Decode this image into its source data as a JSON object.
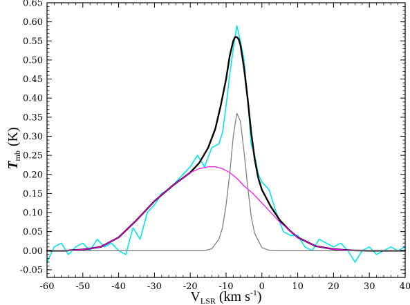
{
  "chart_data": {
    "type": "line",
    "title": "",
    "xlabel": {
      "main": "V",
      "sub": "LSR",
      "unit_pre": "(km s",
      "unit_sup": "-1",
      "unit_post": ")"
    },
    "ylabel": {
      "main": "T",
      "sub": "mb",
      "unit": "(K)"
    },
    "xlim": [
      -60,
      40
    ],
    "ylim": [
      -0.07,
      0.65
    ],
    "x_ticks": [
      -60,
      -50,
      -40,
      -30,
      -20,
      -10,
      0,
      10,
      20,
      30,
      40
    ],
    "x_tick_labels": [
      "-60",
      "-50",
      "-40",
      "-30",
      "-20",
      "-10",
      "0",
      "10",
      "20",
      "30",
      "40"
    ],
    "y_ticks": [
      -0.05,
      0.0,
      0.05,
      0.1,
      0.15,
      0.2,
      0.25,
      0.3,
      0.35,
      0.4,
      0.45,
      0.5,
      0.55,
      0.6,
      0.65
    ],
    "y_tick_labels": [
      "-0.05",
      "0.00",
      "0.05",
      "0.10",
      "0.15",
      "0.20",
      "0.25",
      "0.30",
      "0.35",
      "0.40",
      "0.45",
      "0.50",
      "0.55",
      "0.60",
      "0.65"
    ],
    "grid": false,
    "legend": "none",
    "series": [
      {
        "role": "observed spectrum",
        "color": "#00e5ee",
        "x": [
          -60,
          -58,
          -56,
          -54,
          -52,
          -50,
          -48,
          -46,
          -44,
          -42,
          -40,
          -38,
          -36,
          -34,
          -32,
          -30,
          -28,
          -26,
          -24,
          -22,
          -20,
          -18,
          -16,
          -14,
          -12,
          -11,
          -10,
          -9,
          -8,
          -7,
          -6,
          -5,
          -4,
          -3,
          -2,
          -1,
          0,
          2,
          4,
          6,
          8,
          10,
          12,
          14,
          16,
          18,
          20,
          22,
          24,
          26,
          28,
          30,
          32,
          34,
          36,
          38,
          40
        ],
        "values": [
          -0.03,
          0.01,
          0.02,
          -0.01,
          0.01,
          0.02,
          0.0,
          0.03,
          0.01,
          0.02,
          0.0,
          -0.01,
          0.06,
          0.03,
          0.1,
          0.12,
          0.15,
          0.16,
          0.18,
          0.2,
          0.22,
          0.25,
          0.22,
          0.27,
          0.28,
          0.31,
          0.38,
          0.46,
          0.53,
          0.59,
          0.55,
          0.5,
          0.4,
          0.28,
          0.25,
          0.2,
          0.18,
          0.16,
          0.1,
          0.05,
          0.04,
          0.04,
          0.01,
          0.0,
          0.03,
          0.02,
          0.01,
          0.02,
          0.0,
          -0.03,
          0.0,
          0.01,
          -0.01,
          0.0,
          0.01,
          0.0,
          0.01
        ]
      },
      {
        "role": "total fit",
        "color": "#000000",
        "x": [
          -60,
          -55,
          -50,
          -45,
          -40,
          -35,
          -30,
          -25,
          -20,
          -17.5,
          -15,
          -13,
          -11.5,
          -10,
          -9,
          -8,
          -7.5,
          -7,
          -6.5,
          -6,
          -5,
          -4,
          -3,
          -2,
          -1,
          0,
          2.5,
          5,
          7.5,
          10,
          15,
          20,
          25,
          30,
          35,
          40
        ],
        "values": [
          0.0,
          0.0,
          0.003,
          0.01,
          0.035,
          0.08,
          0.13,
          0.17,
          0.205,
          0.23,
          0.27,
          0.32,
          0.38,
          0.45,
          0.51,
          0.55,
          0.56,
          0.56,
          0.555,
          0.54,
          0.48,
          0.4,
          0.31,
          0.24,
          0.19,
          0.16,
          0.115,
          0.08,
          0.055,
          0.035,
          0.012,
          0.004,
          0.001,
          0.0,
          0.0,
          0.0
        ]
      },
      {
        "role": "broad gaussian component",
        "color": "#ff00ff",
        "x": [
          -60,
          -55,
          -50,
          -45,
          -40,
          -35,
          -30,
          -25,
          -20,
          -17.5,
          -15,
          -13,
          -11,
          -9,
          -7,
          -5,
          -2.5,
          0,
          2.5,
          5,
          7.5,
          10,
          15,
          20,
          25,
          30,
          35,
          40
        ],
        "values": [
          0.0,
          0.0,
          0.003,
          0.01,
          0.035,
          0.08,
          0.13,
          0.17,
          0.205,
          0.215,
          0.22,
          0.22,
          0.215,
          0.205,
          0.19,
          0.17,
          0.15,
          0.125,
          0.1,
          0.075,
          0.055,
          0.035,
          0.012,
          0.004,
          0.001,
          0.0,
          0.0,
          0.0
        ]
      },
      {
        "role": "narrow gaussian component",
        "color": "#808080",
        "x": [
          -60,
          -20,
          -16,
          -14,
          -12,
          -11,
          -10,
          -9,
          -8,
          -7,
          -6,
          -5,
          -4,
          -3,
          -2,
          0,
          2,
          4,
          40
        ],
        "values": [
          0.0,
          0.0,
          0.0,
          0.005,
          0.03,
          0.06,
          0.12,
          0.2,
          0.3,
          0.36,
          0.34,
          0.26,
          0.17,
          0.09,
          0.045,
          0.008,
          0.001,
          0.0,
          0.0
        ]
      }
    ]
  }
}
